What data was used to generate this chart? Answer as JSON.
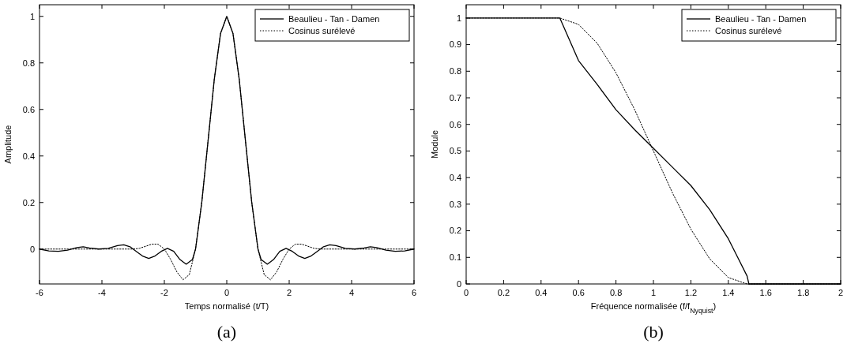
{
  "chart_data": [
    {
      "type": "line",
      "xlabel": "Temps normalisé (t/T)",
      "ylabel": "Amplitude",
      "xlim": [
        -6,
        6
      ],
      "ylim": [
        -0.15,
        1.05
      ],
      "xticks": [
        -6,
        -4,
        -2,
        0,
        2,
        4,
        6
      ],
      "yticks": [
        0,
        0.2,
        0.4,
        0.6,
        0.8,
        1
      ],
      "legend": "top right",
      "annotations": [
        "(a)"
      ],
      "series": [
        {
          "name": "Beaulieu - Tan - Damen",
          "color": "#000000",
          "line_style": "solid",
          "x": [
            -6,
            -5.7,
            -5.4,
            -5.1,
            -4.8,
            -4.6,
            -4.4,
            -4.1,
            -3.8,
            -3.5,
            -3.3,
            -3.1,
            -2.9,
            -2.7,
            -2.5,
            -2.3,
            -2.1,
            -1.9,
            -1.7,
            -1.5,
            -1.3,
            -1.1,
            -1,
            -0.8,
            -0.6,
            -0.4,
            -0.2,
            0,
            0.2,
            0.4,
            0.6,
            0.8,
            1,
            1.1,
            1.3,
            1.5,
            1.7,
            1.9,
            2.1,
            2.3,
            2.5,
            2.7,
            2.9,
            3.1,
            3.3,
            3.5,
            3.8,
            4.1,
            4.4,
            4.6,
            4.8,
            5.1,
            5.4,
            5.7,
            6
          ],
          "values": [
            0,
            -0.008,
            -0.01,
            -0.005,
            0.006,
            0.01,
            0.005,
            0,
            0.003,
            0.015,
            0.018,
            0.01,
            -0.01,
            -0.03,
            -0.04,
            -0.03,
            -0.01,
            0.003,
            -0.01,
            -0.045,
            -0.065,
            -0.045,
            0,
            0.201,
            0.464,
            0.729,
            0.926,
            1,
            0.926,
            0.729,
            0.464,
            0.201,
            0,
            -0.045,
            -0.065,
            -0.045,
            -0.01,
            0.003,
            -0.01,
            -0.03,
            -0.04,
            -0.03,
            -0.01,
            0.01,
            0.018,
            0.015,
            0.003,
            0,
            0.005,
            0.01,
            0.006,
            -0.005,
            -0.01,
            -0.008,
            0
          ]
        },
        {
          "name": "Cosinus surélevé",
          "color": "#000000",
          "line_style": "dotted",
          "x": [
            -6,
            -3,
            -2.8,
            -2.6,
            -2.4,
            -2.2,
            -2,
            -1.8,
            -1.6,
            -1.4,
            -1.2,
            -1,
            -0.8,
            -0.6,
            -0.4,
            -0.2,
            0,
            0.2,
            0.4,
            0.6,
            0.8,
            1,
            1.2,
            1.4,
            1.6,
            1.8,
            2,
            2.2,
            2.4,
            2.6,
            2.8,
            3,
            6
          ],
          "values": [
            0,
            0,
            0.003,
            0.012,
            0.021,
            0.021,
            0,
            -0.044,
            -0.098,
            -0.132,
            -0.11,
            0,
            0.201,
            0.464,
            0.729,
            0.926,
            1,
            0.926,
            0.729,
            0.464,
            0.201,
            0,
            -0.11,
            -0.132,
            -0.098,
            -0.044,
            0,
            0.021,
            0.021,
            0.012,
            0.003,
            0,
            0
          ]
        }
      ]
    },
    {
      "type": "line",
      "xlabel": "Fréquence normalisée (f/f$_{Nyquist}$)",
      "ylabel": "Module",
      "xlim": [
        0,
        2
      ],
      "ylim": [
        0,
        1.05
      ],
      "xticks": [
        0,
        0.2,
        0.4,
        0.6,
        0.8,
        1,
        1.2,
        1.4,
        1.6,
        1.8,
        2
      ],
      "yticks": [
        0,
        0.1,
        0.2,
        0.3,
        0.4,
        0.5,
        0.6,
        0.7,
        0.8,
        0.9,
        1
      ],
      "legend": "top right",
      "annotations": [
        "(b)"
      ],
      "series": [
        {
          "name": "Beaulieu - Tan - Damen",
          "color": "#000000",
          "line_style": "solid",
          "x": [
            0,
            0.5,
            0.55,
            0.6,
            0.7,
            0.8,
            0.9,
            1,
            1.1,
            1.2,
            1.3,
            1.4,
            1.45,
            1.5,
            1.51,
            2
          ],
          "values": [
            1,
            1,
            0.92,
            0.84,
            0.75,
            0.655,
            0.58,
            0.51,
            0.44,
            0.37,
            0.28,
            0.17,
            0.1,
            0.03,
            0,
            0
          ]
        },
        {
          "name": "Cosinus surélevé",
          "color": "#000000",
          "line_style": "dotted",
          "x": [
            0,
            0.5,
            0.6,
            0.7,
            0.8,
            0.9,
            1,
            1.1,
            1.2,
            1.3,
            1.4,
            1.5,
            2
          ],
          "values": [
            1,
            1,
            0.976,
            0.905,
            0.794,
            0.655,
            0.5,
            0.345,
            0.206,
            0.095,
            0.024,
            0,
            0
          ]
        }
      ]
    }
  ]
}
